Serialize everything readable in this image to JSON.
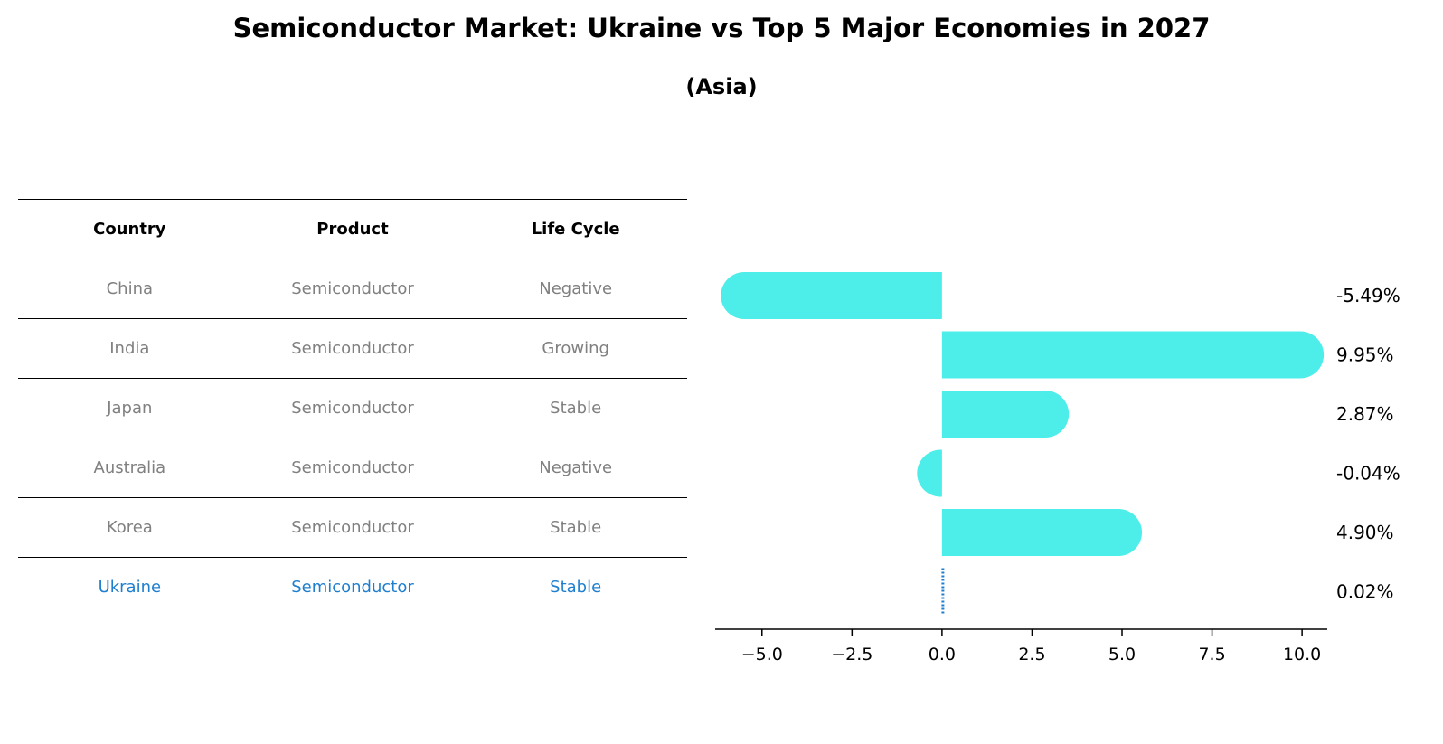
{
  "title": "Semiconductor Market: Ukraine vs Top 5 Major Economies in 2027",
  "subtitle": "(Asia)",
  "table": {
    "headers": [
      "Country",
      "Product",
      "Life Cycle"
    ],
    "rows": [
      [
        "China",
        "Semiconductor",
        "Negative"
      ],
      [
        "India",
        "Semiconductor",
        "Growing"
      ],
      [
        "Japan",
        "Semiconductor",
        "Stable"
      ],
      [
        "Australia",
        "Semiconductor",
        "Negative"
      ],
      [
        "Korea",
        "Semiconductor",
        "Stable"
      ],
      [
        "Ukraine",
        "Semiconductor",
        "Stable"
      ]
    ],
    "highlight_row": 5
  },
  "colors": {
    "bar": "#4deeea",
    "highlight": "#1f7fcf",
    "muted_text": "#808080"
  },
  "chart_data": {
    "type": "bar",
    "orientation": "horizontal",
    "categories": [
      "China",
      "India",
      "Japan",
      "Australia",
      "Korea",
      "Ukraine"
    ],
    "values": [
      -5.49,
      9.95,
      2.87,
      -0.04,
      4.9,
      0.02
    ],
    "value_labels": [
      "-5.49%",
      "9.95%",
      "2.87%",
      "-0.04%",
      "4.90%",
      "0.02%"
    ],
    "xlim": [
      -6.3,
      10.7
    ],
    "xticks": [
      -5.0,
      -2.5,
      0.0,
      2.5,
      5.0,
      7.5,
      10.0
    ],
    "xtick_labels": [
      "−5.0",
      "−2.5",
      "0.0",
      "2.5",
      "5.0",
      "7.5",
      "10.0"
    ],
    "title": "Semiconductor Market: Ukraine vs Top 5 Major Economies in 2027",
    "xlabel": "",
    "ylabel": "",
    "grid": false
  }
}
